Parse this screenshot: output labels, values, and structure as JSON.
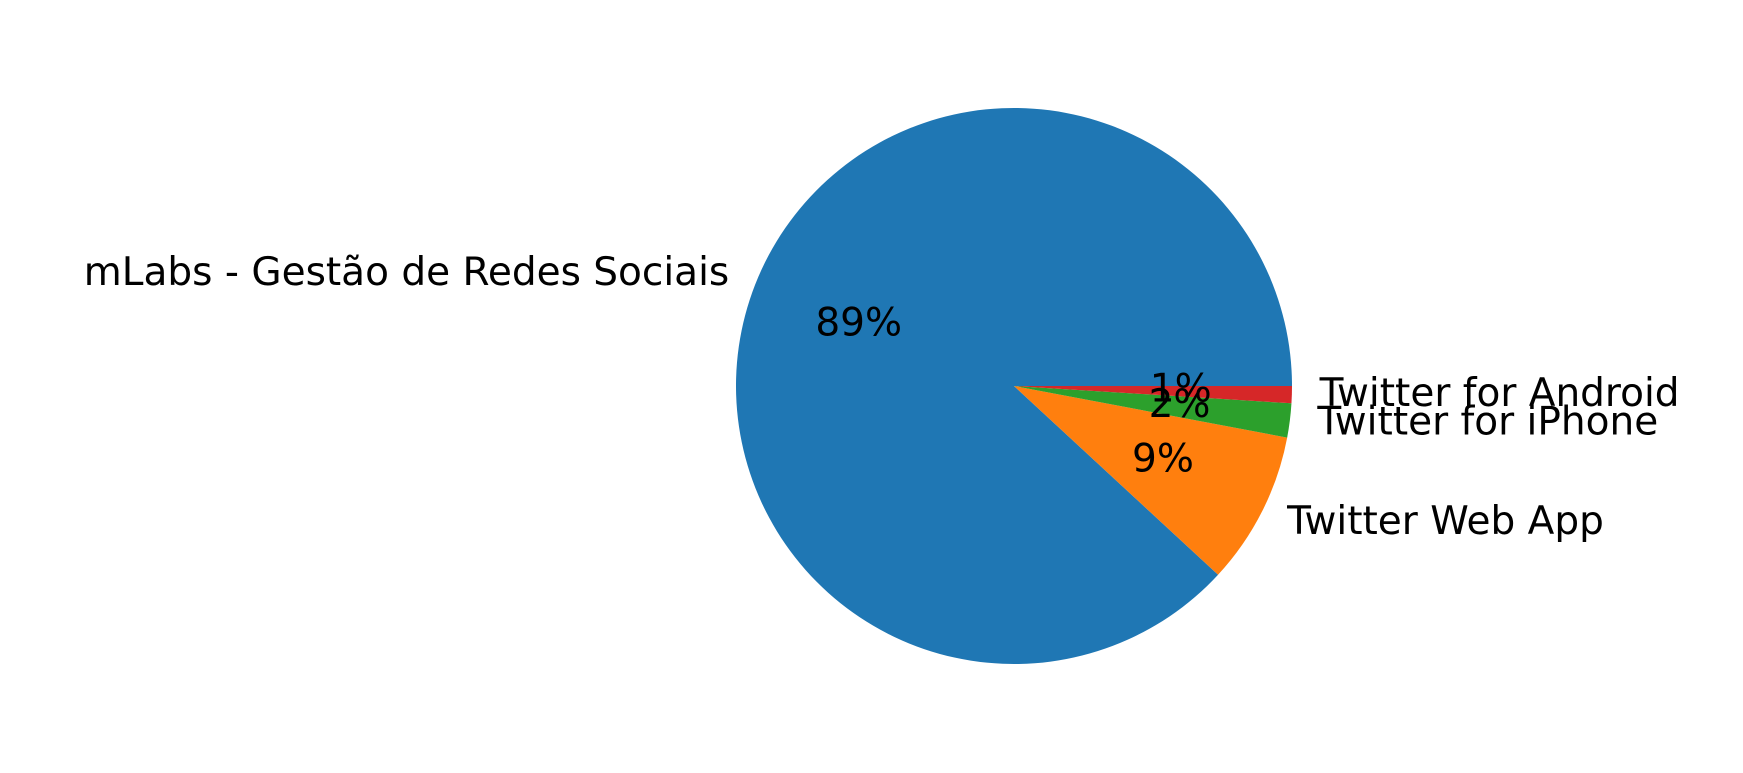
{
  "chart_data": {
    "type": "pie",
    "categories": [
      "mLabs - Gestão de Redes Sociais",
      "Twitter Web App",
      "Twitter for iPhone",
      "Twitter for Android"
    ],
    "values": [
      89,
      9,
      2,
      1
    ],
    "value_labels": [
      "89%",
      "9%",
      "2%",
      "1%"
    ],
    "colors": [
      "#1f77b4",
      "#ff7f0e",
      "#2ca02c",
      "#d62728"
    ]
  }
}
